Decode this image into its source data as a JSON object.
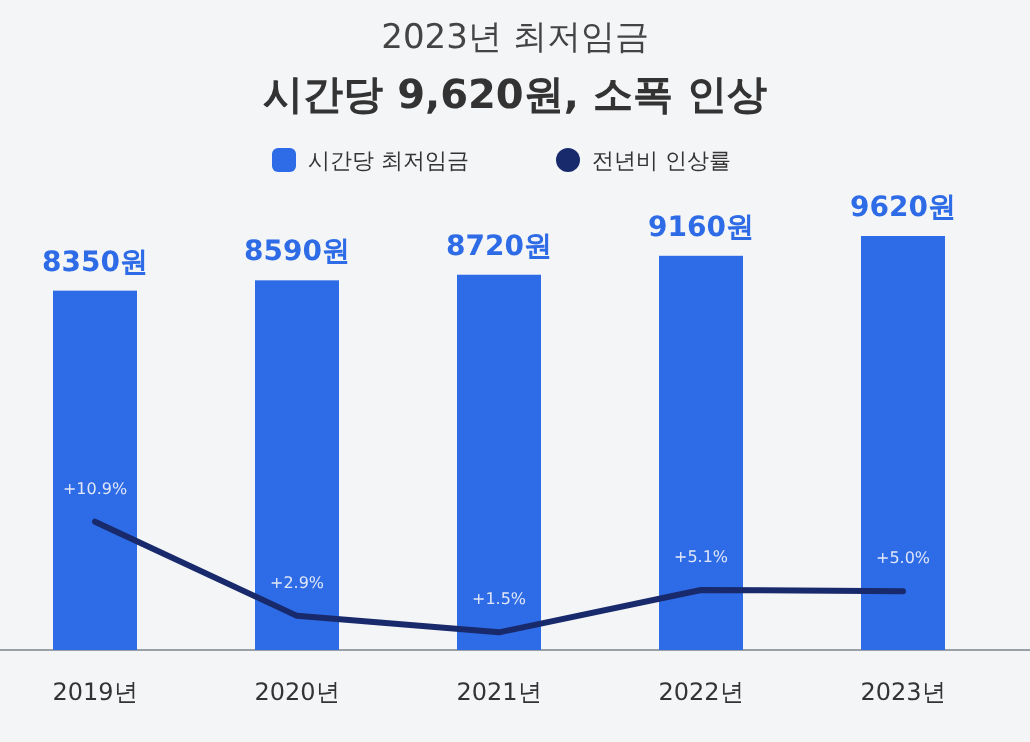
{
  "chart_data": {
    "type": "bar",
    "title": "2023년 최저임금",
    "subtitle": "시간당 9,620원, 소폭 인상",
    "categories": [
      "2019년",
      "2020년",
      "2021년",
      "2022년",
      "2023년"
    ],
    "legend": "top",
    "series": [
      {
        "name": "시간당 최저임금",
        "color": "#2e6be6",
        "values": [
          8350,
          8590,
          8720,
          9160,
          9620
        ],
        "value_labels": [
          "8350원",
          "8590원",
          "8720원",
          "9160원",
          "9620원"
        ]
      },
      {
        "name": "전년비 인상률",
        "type": "line",
        "axis": "y2",
        "color": "#182a6b",
        "values": [
          10.9,
          2.9,
          1.5,
          5.1,
          5.0
        ],
        "value_labels": [
          "+10.9%",
          "+2.9%",
          "+1.5%",
          "+5.1%",
          "+5.0%"
        ]
      }
    ]
  }
}
